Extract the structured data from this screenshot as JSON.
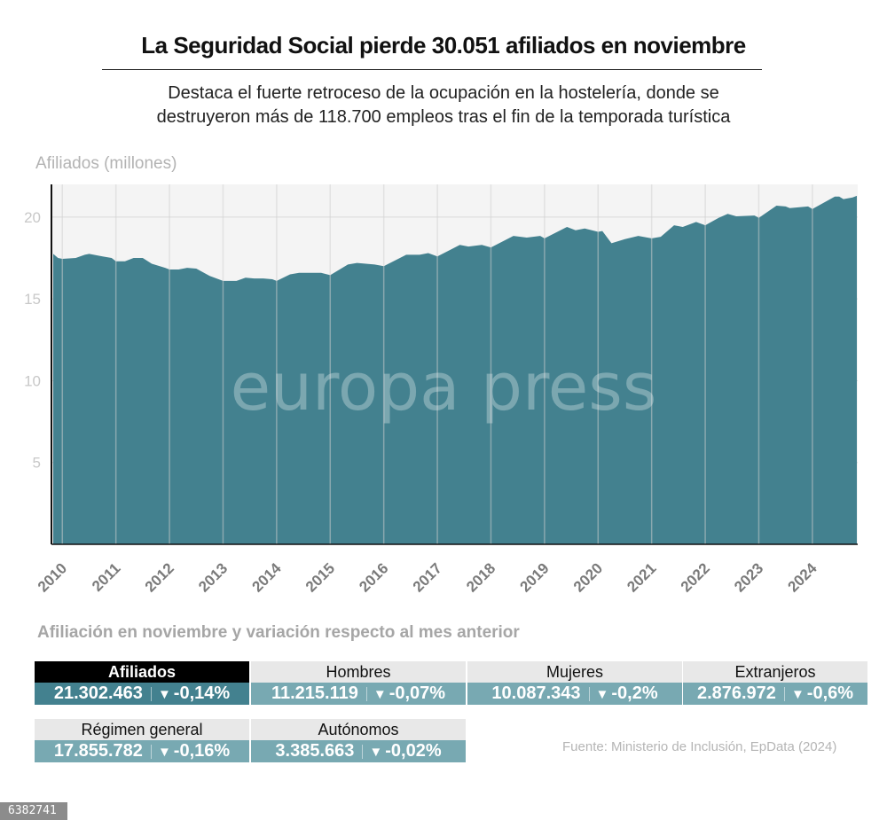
{
  "header": {
    "title": "La Seguridad Social pierde 30.051 afiliados en noviembre",
    "subtitle_line1": "Destaca el fuerte retroceso de la ocupación en la hostelería, donde se",
    "subtitle_line2": "destruyeron más de 118.700 empleos tras el fin de la temporada turística"
  },
  "watermark": "europa press",
  "colors": {
    "area": "#43818f",
    "plot_bg": "#f4f4f4",
    "primary_kpi": "#43818f",
    "secondary_kpi": "#78a9b2"
  },
  "chart_data": {
    "type": "area",
    "title": "",
    "ylabel": "Afiliados (millones)",
    "xlabel": "",
    "ylim": [
      0,
      22
    ],
    "yticks": [
      5,
      10,
      15,
      20
    ],
    "xticks": [
      "2010",
      "2011",
      "2012",
      "2013",
      "2014",
      "2015",
      "2016",
      "2017",
      "2018",
      "2019",
      "2020",
      "2021",
      "2022",
      "2023",
      "2024"
    ],
    "grid": true,
    "x_start": 2009.83,
    "x_end": 2024.83,
    "series": [
      {
        "name": "Afiliados",
        "points": [
          [
            2009.83,
            17.75
          ],
          [
            2009.92,
            17.5
          ],
          [
            2010.0,
            17.45
          ],
          [
            2010.25,
            17.5
          ],
          [
            2010.42,
            17.7
          ],
          [
            2010.5,
            17.75
          ],
          [
            2010.75,
            17.6
          ],
          [
            2010.92,
            17.5
          ],
          [
            2011.0,
            17.3
          ],
          [
            2011.17,
            17.3
          ],
          [
            2011.33,
            17.5
          ],
          [
            2011.5,
            17.5
          ],
          [
            2011.67,
            17.15
          ],
          [
            2011.92,
            16.9
          ],
          [
            2012.0,
            16.8
          ],
          [
            2012.17,
            16.8
          ],
          [
            2012.33,
            16.9
          ],
          [
            2012.5,
            16.85
          ],
          [
            2012.75,
            16.4
          ],
          [
            2013.0,
            16.1
          ],
          [
            2013.25,
            16.1
          ],
          [
            2013.42,
            16.3
          ],
          [
            2013.58,
            16.25
          ],
          [
            2013.75,
            16.25
          ],
          [
            2013.92,
            16.2
          ],
          [
            2014.0,
            16.1
          ],
          [
            2014.25,
            16.5
          ],
          [
            2014.42,
            16.6
          ],
          [
            2014.83,
            16.6
          ],
          [
            2015.0,
            16.45
          ],
          [
            2015.33,
            17.1
          ],
          [
            2015.5,
            17.2
          ],
          [
            2015.83,
            17.1
          ],
          [
            2016.0,
            17.0
          ],
          [
            2016.42,
            17.7
          ],
          [
            2016.67,
            17.7
          ],
          [
            2016.83,
            17.8
          ],
          [
            2017.0,
            17.6
          ],
          [
            2017.42,
            18.3
          ],
          [
            2017.58,
            18.2
          ],
          [
            2017.83,
            18.3
          ],
          [
            2018.0,
            18.15
          ],
          [
            2018.42,
            18.85
          ],
          [
            2018.67,
            18.75
          ],
          [
            2018.92,
            18.85
          ],
          [
            2019.0,
            18.7
          ],
          [
            2019.42,
            19.4
          ],
          [
            2019.58,
            19.2
          ],
          [
            2019.75,
            19.3
          ],
          [
            2020.0,
            19.1
          ],
          [
            2020.08,
            19.15
          ],
          [
            2020.25,
            18.4
          ],
          [
            2020.5,
            18.65
          ],
          [
            2020.75,
            18.85
          ],
          [
            2021.0,
            18.7
          ],
          [
            2021.17,
            18.8
          ],
          [
            2021.42,
            19.5
          ],
          [
            2021.58,
            19.4
          ],
          [
            2021.83,
            19.7
          ],
          [
            2022.0,
            19.5
          ],
          [
            2022.25,
            19.95
          ],
          [
            2022.42,
            20.2
          ],
          [
            2022.58,
            20.05
          ],
          [
            2022.92,
            20.1
          ],
          [
            2023.0,
            19.95
          ],
          [
            2023.33,
            20.7
          ],
          [
            2023.5,
            20.65
          ],
          [
            2023.58,
            20.55
          ],
          [
            2023.92,
            20.65
          ],
          [
            2024.0,
            20.5
          ],
          [
            2024.42,
            21.25
          ],
          [
            2024.5,
            21.25
          ],
          [
            2024.58,
            21.1
          ],
          [
            2024.75,
            21.2
          ],
          [
            2024.83,
            21.3
          ]
        ]
      }
    ]
  },
  "table": {
    "title": "Afiliación en noviembre y variación respecto al mes anterior",
    "arrow": "▼",
    "items": [
      {
        "label": "Afiliados",
        "value": "21.302.463",
        "change": "-0,14%"
      },
      {
        "label": "Hombres",
        "value": "11.215.119",
        "change": "-0,07%"
      },
      {
        "label": "Mujeres",
        "value": "10.087.343",
        "change": "-0,2%"
      },
      {
        "label": "Extranjeros",
        "value": "2.876.972",
        "change": "-0,6%"
      },
      {
        "label": "Régimen general",
        "value": "17.855.782",
        "change": "-0,16%"
      },
      {
        "label": "Autónomos",
        "value": "3.385.663",
        "change": "-0,02%"
      }
    ]
  },
  "footer": {
    "source": "Fuente: Ministerio de Inclusión, EpData (2024)",
    "image_id": "6382741"
  }
}
